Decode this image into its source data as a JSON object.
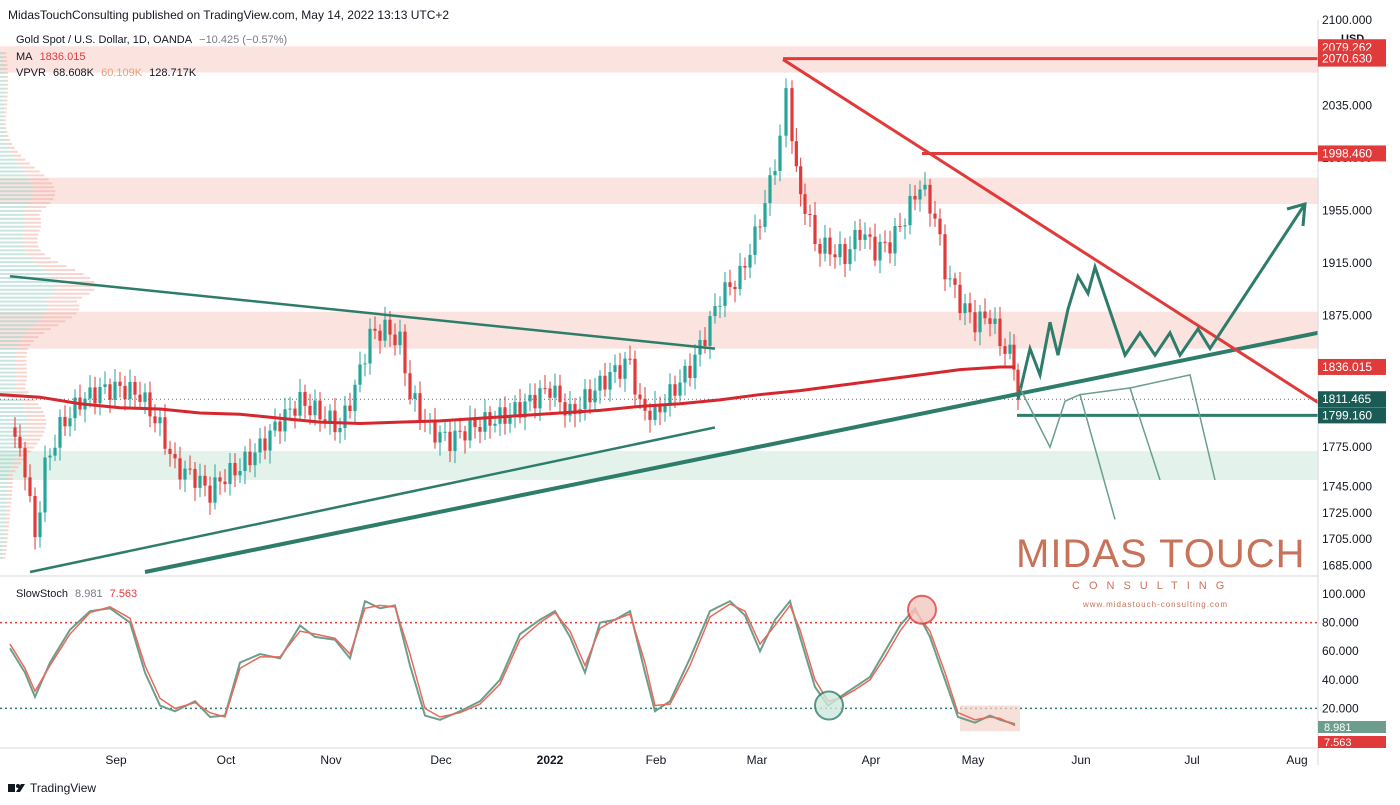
{
  "header": {
    "published": "MidasTouchConsulting published on TradingView.com, May 14, 2022 13:13 UTC+2",
    "symbol": "Gold Spot / U.S. Dollar, 1D, OANDA",
    "change": "−10.425 (−0.57%)",
    "ma_label": "MA",
    "ma_value": "1836.015",
    "vpvr_label": "VPVR",
    "vpvr_v1": "68.608K",
    "vpvr_v2": "60.109K",
    "vpvr_v3": "128.717K",
    "stoch_label": "SlowStoch",
    "stoch_k": "8.981",
    "stoch_d": "7.563"
  },
  "footer": {
    "brand": "TradingView"
  },
  "logo": {
    "main": "MIDAS TOUCH",
    "sub": "CONSULTING",
    "url": "www.midastouch-consulting.com"
  },
  "colors": {
    "up": "#26a69a",
    "down": "#e03a3a",
    "ma": "#d6262e",
    "trend_green": "#2e7d6b",
    "trend_red": "#e03a3a",
    "zone_red": "#fbe3e0",
    "zone_green": "#e3f2ea"
  },
  "chart_data": {
    "type": "candlestick",
    "currency": "USD",
    "x_labels": [
      "Sep",
      "Oct",
      "Nov",
      "Dec",
      "2022",
      "Feb",
      "Mar",
      "Apr",
      "May",
      "Jun",
      "Jul",
      "Aug"
    ],
    "price_ticks": [
      "2100.000",
      "2035.000",
      "1995.000",
      "1955.000",
      "1915.000",
      "1875.000",
      "1836.015",
      "1775.000",
      "1745.000",
      "1725.000",
      "1705.000",
      "1685.000"
    ],
    "price_axis_ticks": [
      2100,
      2035,
      1995,
      1955,
      1915,
      1875,
      1775,
      1745,
      1725,
      1705,
      1685
    ],
    "price_range": [
      1680,
      2100
    ],
    "price_tags": [
      {
        "value": 2079.262,
        "label": "2079.262",
        "color": "#e03a3a"
      },
      {
        "value": 2070.63,
        "label": "2070.630",
        "color": "#e03a3a"
      },
      {
        "value": 1998.46,
        "label": "1998.460",
        "color": "#e03a3a"
      },
      {
        "value": 1836.015,
        "label": "1836.015",
        "color": "#e03a3a"
      },
      {
        "value": 1811.465,
        "label": "1811.465",
        "color": "#1a5c55"
      },
      {
        "value": 1799.16,
        "label": "1799.160",
        "color": "#1a5c55"
      }
    ],
    "zones": [
      {
        "from": 2060,
        "to": 2080,
        "kind": "resistance"
      },
      {
        "from": 1960,
        "to": 1980,
        "kind": "resistance"
      },
      {
        "from": 1850,
        "to": 1878,
        "kind": "resistance"
      },
      {
        "from": 1750,
        "to": 1772,
        "kind": "support"
      }
    ],
    "ma_series": [
      [
        0,
        1815
      ],
      [
        40,
        1813
      ],
      [
        80,
        1808
      ],
      [
        120,
        1805
      ],
      [
        160,
        1804
      ],
      [
        200,
        1801
      ],
      [
        240,
        1800
      ],
      [
        280,
        1797
      ],
      [
        320,
        1794
      ],
      [
        360,
        1793
      ],
      [
        400,
        1794
      ],
      [
        440,
        1795
      ],
      [
        480,
        1797
      ],
      [
        520,
        1799
      ],
      [
        560,
        1801
      ],
      [
        600,
        1803
      ],
      [
        640,
        1806
      ],
      [
        680,
        1808
      ],
      [
        720,
        1811
      ],
      [
        760,
        1815
      ],
      [
        800,
        1818
      ],
      [
        840,
        1822
      ],
      [
        880,
        1826
      ],
      [
        920,
        1830
      ],
      [
        960,
        1834
      ],
      [
        1000,
        1836
      ],
      [
        1015,
        1836
      ]
    ],
    "close_series": [
      [
        10,
        1790
      ],
      [
        25,
        1760
      ],
      [
        35,
        1705
      ],
      [
        45,
        1760
      ],
      [
        60,
        1790
      ],
      [
        80,
        1810
      ],
      [
        100,
        1818
      ],
      [
        120,
        1820
      ],
      [
        140,
        1815
      ],
      [
        160,
        1790
      ],
      [
        175,
        1760
      ],
      [
        195,
        1752
      ],
      [
        210,
        1740
      ],
      [
        220,
        1750
      ],
      [
        240,
        1760
      ],
      [
        260,
        1775
      ],
      [
        280,
        1795
      ],
      [
        300,
        1810
      ],
      [
        320,
        1800
      ],
      [
        340,
        1790
      ],
      [
        355,
        1820
      ],
      [
        370,
        1860
      ],
      [
        385,
        1865
      ],
      [
        400,
        1855
      ],
      [
        410,
        1815
      ],
      [
        430,
        1788
      ],
      [
        450,
        1780
      ],
      [
        470,
        1790
      ],
      [
        490,
        1795
      ],
      [
        510,
        1800
      ],
      [
        530,
        1810
      ],
      [
        550,
        1820
      ],
      [
        570,
        1800
      ],
      [
        590,
        1815
      ],
      [
        610,
        1830
      ],
      [
        630,
        1840
      ],
      [
        640,
        1805
      ],
      [
        655,
        1800
      ],
      [
        670,
        1815
      ],
      [
        690,
        1835
      ],
      [
        705,
        1860
      ],
      [
        720,
        1890
      ],
      [
        740,
        1905
      ],
      [
        755,
        1935
      ],
      [
        770,
        1975
      ],
      [
        780,
        2010
      ],
      [
        786,
        2055
      ],
      [
        792,
        2000
      ],
      [
        805,
        1960
      ],
      [
        815,
        1930
      ],
      [
        830,
        1925
      ],
      [
        845,
        1920
      ],
      [
        860,
        1940
      ],
      [
        875,
        1925
      ],
      [
        890,
        1930
      ],
      [
        905,
        1950
      ],
      [
        920,
        1975
      ],
      [
        935,
        1950
      ],
      [
        945,
        1910
      ],
      [
        960,
        1885
      ],
      [
        975,
        1870
      ],
      [
        990,
        1875
      ],
      [
        1000,
        1855
      ],
      [
        1010,
        1845
      ],
      [
        1018,
        1810
      ]
    ],
    "trendlines": [
      {
        "x1": 10,
        "y1": 1905,
        "x2": 715,
        "y2": 1850,
        "color": "green",
        "width": 2.5
      },
      {
        "x1": 30,
        "y1": 1680,
        "x2": 715,
        "y2": 1790,
        "color": "green",
        "width": 2.5
      },
      {
        "x1": 145,
        "y1": 1680,
        "x2": 1318,
        "y2": 1862,
        "color": "green",
        "width": 4
      },
      {
        "x1": 783,
        "y1": 2070,
        "x2": 1318,
        "y2": 1809,
        "color": "red",
        "width": 3
      },
      {
        "x1": 783,
        "y1": 2070.63,
        "x2": 1318,
        "y2": 2070.63,
        "color": "red",
        "width": 3
      },
      {
        "x1": 922,
        "y1": 1998.46,
        "x2": 1318,
        "y2": 1998.46,
        "color": "red",
        "width": 3
      },
      {
        "x1": 1017,
        "y1": 1799.16,
        "x2": 1318,
        "y2": 1799.16,
        "color": "green",
        "width": 3
      }
    ],
    "projection_main": [
      [
        1018,
        1811
      ],
      [
        1030,
        1850
      ],
      [
        1040,
        1830
      ],
      [
        1050,
        1870
      ],
      [
        1058,
        1845
      ],
      [
        1068,
        1880
      ],
      [
        1078,
        1905
      ],
      [
        1088,
        1892
      ],
      [
        1095,
        1912
      ],
      [
        1125,
        1845
      ],
      [
        1140,
        1862
      ],
      [
        1155,
        1845
      ],
      [
        1170,
        1862
      ],
      [
        1180,
        1845
      ],
      [
        1198,
        1865
      ],
      [
        1210,
        1850
      ],
      [
        1305,
        1960
      ]
    ],
    "projection_alt": [
      [
        1020,
        1820
      ],
      [
        1050,
        1775
      ],
      [
        1065,
        1810
      ],
      [
        1080,
        1815
      ],
      [
        1115,
        1720
      ],
      [
        1130,
        1820
      ],
      [
        1160,
        1750
      ],
      [
        1190,
        1830
      ],
      [
        1215,
        1750
      ]
    ],
    "stoch": {
      "ticks": [
        100,
        80,
        60,
        40,
        20
      ],
      "tick_labels": [
        "100.000",
        "80.000",
        "60.000",
        "40.000",
        "20.000"
      ],
      "levels": [
        80,
        20
      ],
      "k": [
        [
          10,
          62
        ],
        [
          25,
          45
        ],
        [
          35,
          28
        ],
        [
          50,
          52
        ],
        [
          70,
          75
        ],
        [
          90,
          88
        ],
        [
          110,
          90
        ],
        [
          130,
          80
        ],
        [
          145,
          45
        ],
        [
          160,
          22
        ],
        [
          175,
          18
        ],
        [
          195,
          25
        ],
        [
          210,
          14
        ],
        [
          225,
          15
        ],
        [
          240,
          52
        ],
        [
          260,
          58
        ],
        [
          280,
          55
        ],
        [
          300,
          78
        ],
        [
          315,
          70
        ],
        [
          335,
          68
        ],
        [
          350,
          55
        ],
        [
          365,
          95
        ],
        [
          380,
          90
        ],
        [
          395,
          92
        ],
        [
          410,
          50
        ],
        [
          425,
          15
        ],
        [
          440,
          12
        ],
        [
          460,
          18
        ],
        [
          480,
          25
        ],
        [
          500,
          40
        ],
        [
          520,
          72
        ],
        [
          540,
          82
        ],
        [
          555,
          88
        ],
        [
          570,
          70
        ],
        [
          585,
          45
        ],
        [
          600,
          80
        ],
        [
          615,
          82
        ],
        [
          630,
          88
        ],
        [
          645,
          45
        ],
        [
          655,
          18
        ],
        [
          670,
          25
        ],
        [
          690,
          55
        ],
        [
          710,
          88
        ],
        [
          730,
          95
        ],
        [
          745,
          85
        ],
        [
          760,
          60
        ],
        [
          775,
          82
        ],
        [
          790,
          95
        ],
        [
          800,
          70
        ],
        [
          815,
          35
        ],
        [
          828,
          22
        ],
        [
          840,
          28
        ],
        [
          855,
          35
        ],
        [
          870,
          42
        ],
        [
          885,
          60
        ],
        [
          900,
          78
        ],
        [
          915,
          90
        ],
        [
          930,
          70
        ],
        [
          945,
          40
        ],
        [
          958,
          14
        ],
        [
          975,
          10
        ],
        [
          990,
          15
        ],
        [
          1000,
          12
        ],
        [
          1015,
          9
        ]
      ],
      "d": [
        [
          10,
          65
        ],
        [
          25,
          48
        ],
        [
          35,
          32
        ],
        [
          50,
          50
        ],
        [
          70,
          72
        ],
        [
          90,
          87
        ],
        [
          110,
          91
        ],
        [
          130,
          83
        ],
        [
          145,
          50
        ],
        [
          160,
          27
        ],
        [
          175,
          20
        ],
        [
          195,
          24
        ],
        [
          210,
          17
        ],
        [
          225,
          14
        ],
        [
          240,
          48
        ],
        [
          260,
          56
        ],
        [
          280,
          56
        ],
        [
          300,
          74
        ],
        [
          315,
          72
        ],
        [
          335,
          69
        ],
        [
          350,
          58
        ],
        [
          365,
          90
        ],
        [
          380,
          92
        ],
        [
          395,
          91
        ],
        [
          410,
          58
        ],
        [
          425,
          20
        ],
        [
          440,
          14
        ],
        [
          460,
          17
        ],
        [
          480,
          23
        ],
        [
          500,
          37
        ],
        [
          520,
          68
        ],
        [
          540,
          80
        ],
        [
          555,
          87
        ],
        [
          570,
          74
        ],
        [
          585,
          50
        ],
        [
          600,
          76
        ],
        [
          615,
          82
        ],
        [
          630,
          86
        ],
        [
          645,
          52
        ],
        [
          655,
          22
        ],
        [
          670,
          23
        ],
        [
          690,
          50
        ],
        [
          710,
          84
        ],
        [
          730,
          93
        ],
        [
          745,
          88
        ],
        [
          760,
          65
        ],
        [
          775,
          78
        ],
        [
          790,
          92
        ],
        [
          800,
          75
        ],
        [
          815,
          40
        ],
        [
          828,
          25
        ],
        [
          840,
          27
        ],
        [
          855,
          33
        ],
        [
          870,
          40
        ],
        [
          885,
          56
        ],
        [
          900,
          74
        ],
        [
          915,
          88
        ],
        [
          930,
          74
        ],
        [
          945,
          45
        ],
        [
          958,
          17
        ],
        [
          975,
          12
        ],
        [
          990,
          14
        ],
        [
          1000,
          13
        ],
        [
          1015,
          8
        ]
      ],
      "k_tag": "8.981",
      "d_tag": "7.563"
    }
  }
}
